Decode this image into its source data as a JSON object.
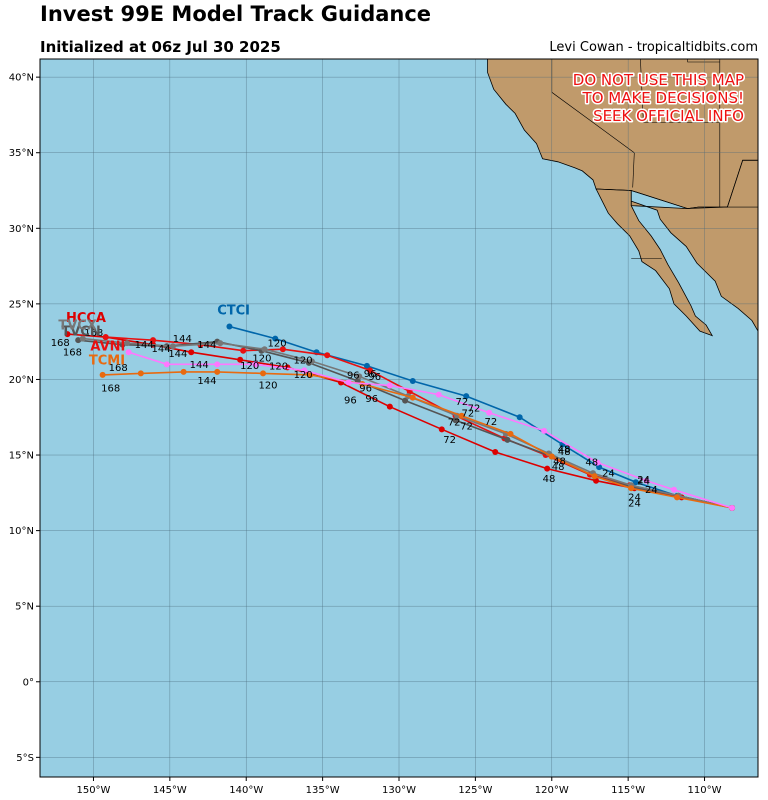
{
  "header": {
    "title": "Invest 99E Model Track Guidance",
    "subtitle": "Initialized at 06z Jul 30 2025",
    "credit": "Levi Cowan - tropicaltidbits.com"
  },
  "warning": {
    "lines": [
      "DO NOT USE THIS MAP",
      "TO MAKE DECISIONS!",
      "SEEK OFFICIAL INFO"
    ],
    "color": "#ee1111"
  },
  "colors": {
    "ocean": "#97cee3",
    "land": "#c09a6b",
    "border": "#000000",
    "grid": "#4a6a7a"
  },
  "chart_data": {
    "type": "line",
    "lon_range": [
      -153.5,
      -106.5
    ],
    "lat_range": [
      -6.3,
      41.2
    ],
    "x_ticks": [
      {
        "v": -150,
        "label": "150°W"
      },
      {
        "v": -145,
        "label": "145°W"
      },
      {
        "v": -140,
        "label": "140°W"
      },
      {
        "v": -135,
        "label": "135°W"
      },
      {
        "v": -130,
        "label": "130°W"
      },
      {
        "v": -125,
        "label": "125°W"
      },
      {
        "v": -120,
        "label": "120°W"
      },
      {
        "v": -115,
        "label": "115°W"
      },
      {
        "v": -110,
        "label": "110°W"
      }
    ],
    "y_ticks": [
      {
        "v": 40,
        "label": "40°N"
      },
      {
        "v": 35,
        "label": "35°N"
      },
      {
        "v": 30,
        "label": "30°N"
      },
      {
        "v": 25,
        "label": "25°N"
      },
      {
        "v": 20,
        "label": "20°N"
      },
      {
        "v": 15,
        "label": "15°N"
      },
      {
        "v": 10,
        "label": "10°N"
      },
      {
        "v": 5,
        "label": "5°N"
      },
      {
        "v": 0,
        "label": "0°"
      },
      {
        "v": -5,
        "label": "5°S"
      }
    ],
    "land_outline": [
      [
        -106.5,
        34.5
      ],
      [
        -107.5,
        34.5
      ],
      [
        -108.5,
        31.4
      ],
      [
        -110.4,
        31.4
      ],
      [
        -111.1,
        31.3
      ],
      [
        -114.8,
        32.5
      ],
      [
        -117.1,
        32.6
      ],
      [
        -117.3,
        33.2
      ],
      [
        -118.0,
        33.8
      ],
      [
        -118.5,
        34.0
      ],
      [
        -119.6,
        34.4
      ],
      [
        -120.6,
        34.6
      ],
      [
        -121.0,
        35.6
      ],
      [
        -121.8,
        36.5
      ],
      [
        -122.4,
        37.6
      ],
      [
        -123.0,
        38.2
      ],
      [
        -123.8,
        39.2
      ],
      [
        -124.2,
        40.3
      ],
      [
        -124.2,
        41.2
      ],
      [
        -106.5,
        41.2
      ]
    ],
    "baja": [
      [
        -117.1,
        32.6
      ],
      [
        -116.7,
        31.8
      ],
      [
        -116.3,
        31.0
      ],
      [
        -115.7,
        30.3
      ],
      [
        -114.9,
        29.5
      ],
      [
        -114.3,
        28.5
      ],
      [
        -114.1,
        27.8
      ],
      [
        -113.2,
        27.2
      ],
      [
        -112.3,
        26.0
      ],
      [
        -112.0,
        25.0
      ],
      [
        -111.2,
        24.2
      ],
      [
        -110.3,
        23.2
      ],
      [
        -109.5,
        22.9
      ],
      [
        -109.9,
        23.6
      ],
      [
        -110.6,
        24.2
      ],
      [
        -110.9,
        24.9
      ],
      [
        -111.7,
        26.4
      ],
      [
        -112.4,
        27.6
      ],
      [
        -112.9,
        28.6
      ],
      [
        -113.5,
        29.5
      ],
      [
        -114.3,
        30.5
      ],
      [
        -114.8,
        31.5
      ],
      [
        -114.8,
        32.5
      ]
    ],
    "mexico_mainland": [
      [
        -106.5,
        23.2
      ],
      [
        -106.9,
        23.9
      ],
      [
        -107.8,
        24.7
      ],
      [
        -108.9,
        25.5
      ],
      [
        -109.3,
        26.5
      ],
      [
        -110.5,
        27.7
      ],
      [
        -111.2,
        28.8
      ],
      [
        -112.2,
        29.7
      ],
      [
        -112.9,
        30.6
      ],
      [
        -113.1,
        31.2
      ],
      [
        -114.8,
        31.8
      ],
      [
        -114.8,
        32.5
      ],
      [
        -114.8,
        31.5
      ],
      [
        -111.1,
        31.3
      ],
      [
        -110.4,
        31.4
      ],
      [
        -108.5,
        31.4
      ],
      [
        -107.5,
        34.5
      ],
      [
        -106.5,
        34.5
      ]
    ],
    "borders": [
      [
        [
          -117.1,
          32.6
        ],
        [
          -114.8,
          32.5
        ],
        [
          -111.1,
          31.3
        ],
        [
          -108.5,
          31.4
        ],
        [
          -106.5,
          31.4
        ]
      ],
      [
        [
          -120.0,
          41.2
        ],
        [
          -120.0,
          39.0
        ],
        [
          -114.6,
          35.0
        ]
      ],
      [
        [
          -114.2,
          41.2
        ],
        [
          -114.0,
          37.0
        ]
      ],
      [
        [
          -114.0,
          37.0
        ],
        [
          -109.0,
          37.0
        ],
        [
          -109.0,
          41.2
        ]
      ],
      [
        [
          -114.6,
          35.0
        ],
        [
          -114.7,
          32.7
        ]
      ],
      [
        [
          -109.0,
          37.0
        ],
        [
          -109.0,
          31.4
        ]
      ],
      [
        [
          -111.1,
          41.2
        ],
        [
          -111.1,
          41.0
        ],
        [
          -109.0,
          41.0
        ]
      ],
      [
        [
          -114.8,
          28.0
        ],
        [
          -112.8,
          28.0
        ]
      ]
    ],
    "series": [
      {
        "name": "CTCI",
        "color": "#0066aa",
        "points": [
          [
            -108.2,
            11.5
          ],
          [
            -111.8,
            12.3
          ],
          [
            -114.5,
            13.2
          ],
          [
            -116.9,
            14.2
          ],
          [
            -119.3,
            15.7
          ],
          [
            -122.1,
            17.5
          ],
          [
            -125.6,
            18.9
          ],
          [
            -129.1,
            19.9
          ],
          [
            -132.1,
            20.9
          ],
          [
            -135.4,
            21.8
          ],
          [
            -138.1,
            22.7
          ],
          [
            -141.1,
            23.5
          ]
        ],
        "labels": [],
        "label_pos": [
          -141.9,
          24.3
        ]
      },
      {
        "name": "HCCA",
        "color": "#dd0000",
        "points": [
          [
            -108.2,
            11.5
          ],
          [
            -111.5,
            12.2
          ],
          [
            -114.6,
            12.8
          ],
          [
            -117.1,
            13.3
          ],
          [
            -120.3,
            14.1
          ],
          [
            -123.7,
            15.2
          ],
          [
            -127.2,
            16.7
          ],
          [
            -130.6,
            18.2
          ],
          [
            -133.8,
            19.8
          ],
          [
            -137.3,
            20.8
          ],
          [
            -140.4,
            21.3
          ],
          [
            -143.6,
            21.8
          ],
          [
            -146.1,
            22.3
          ],
          [
            -149.2,
            22.8
          ],
          [
            -151.7,
            23.0
          ]
        ],
        "labels": [
          {
            "t": "24",
            "at": 3
          },
          {
            "t": "48",
            "at": 4
          },
          {
            "t": "72",
            "at": 6
          },
          {
            "t": "96",
            "at": 8
          },
          {
            "t": "120",
            "at": 9
          },
          {
            "t": "144",
            "at": 11
          }
        ],
        "label_pos": [
          -151.8,
          23.8
        ]
      },
      {
        "name": "AVNI",
        "color": "#e81010",
        "points": [
          [
            -108.2,
            11.5
          ],
          [
            -111.7,
            12.3
          ],
          [
            -114.9,
            13.0
          ],
          [
            -117.5,
            13.7
          ],
          [
            -120.4,
            15.0
          ],
          [
            -123.1,
            16.1
          ],
          [
            -126.3,
            17.6
          ],
          [
            -129.3,
            19.2
          ],
          [
            -131.9,
            20.6
          ],
          [
            -134.7,
            21.6
          ],
          [
            -137.6,
            22.0
          ],
          [
            -140.2,
            21.9
          ],
          [
            -143.0,
            22.3
          ],
          [
            -146.1,
            22.6
          ],
          [
            -149.2,
            22.8
          ]
        ],
        "labels": [],
        "label_pos": [
          -150.2,
          21.9
        ]
      },
      {
        "name": "TVCN",
        "color": "#555555",
        "points": [
          [
            -108.2,
            11.5
          ],
          [
            -111.7,
            12.3
          ],
          [
            -114.8,
            12.9
          ],
          [
            -117.2,
            13.6
          ],
          [
            -120.0,
            14.9
          ],
          [
            -122.9,
            16.0
          ],
          [
            -126.3,
            17.3
          ],
          [
            -129.6,
            18.6
          ],
          [
            -132.7,
            19.9
          ],
          [
            -135.9,
            21.1
          ],
          [
            -139.0,
            21.9
          ],
          [
            -141.9,
            22.5
          ],
          [
            -145.2,
            22.2
          ],
          [
            -148.1,
            22.3
          ],
          [
            -151.0,
            22.6
          ]
        ],
        "labels": [
          {
            "t": "24",
            "at": 2
          },
          {
            "t": "48",
            "at": 4
          },
          {
            "t": "72",
            "at": 6
          },
          {
            "t": "96",
            "at": 8
          },
          {
            "t": "120",
            "at": 10
          },
          {
            "t": "144",
            "at": 12
          },
          {
            "t": "168",
            "at": 14
          }
        ],
        "label_pos": [
          -152.1,
          22.9
        ]
      },
      {
        "name": "TVCX",
        "color": "#777777",
        "points": [
          [
            -108.2,
            11.5
          ],
          [
            -111.7,
            12.3
          ],
          [
            -114.8,
            13.0
          ],
          [
            -117.3,
            13.8
          ],
          [
            -120.2,
            15.1
          ],
          [
            -123.0,
            16.4
          ],
          [
            -126.2,
            17.6
          ],
          [
            -129.4,
            18.9
          ],
          [
            -132.6,
            20.2
          ],
          [
            -135.7,
            21.2
          ],
          [
            -138.8,
            22.0
          ],
          [
            -141.7,
            22.4
          ],
          [
            -144.8,
            22.2
          ],
          [
            -147.8,
            22.4
          ],
          [
            -150.7,
            22.7
          ]
        ],
        "labels": [],
        "label_pos": [
          -152.3,
          23.3
        ]
      },
      {
        "name": "TCMI",
        "color": "#e86a10",
        "points": [
          [
            -108.2,
            11.5
          ],
          [
            -111.8,
            12.2
          ],
          [
            -114.8,
            12.8
          ],
          [
            -117.2,
            13.6
          ],
          [
            -120.0,
            14.9
          ],
          [
            -122.7,
            16.4
          ],
          [
            -125.9,
            17.6
          ],
          [
            -129.1,
            18.8
          ],
          [
            -132.4,
            19.7
          ],
          [
            -135.8,
            20.3
          ],
          [
            -138.9,
            20.4
          ],
          [
            -141.9,
            20.5
          ],
          [
            -144.1,
            20.5
          ],
          [
            -146.9,
            20.4
          ],
          [
            -149.4,
            20.3
          ]
        ],
        "labels": [
          {
            "t": "24",
            "at": 2
          },
          {
            "t": "48",
            "at": 4
          },
          {
            "t": "72",
            "at": 6
          },
          {
            "t": "96",
            "at": 8
          },
          {
            "t": "120",
            "at": 10
          },
          {
            "t": "144",
            "at": 12
          },
          {
            "t": "168",
            "at": 14
          }
        ],
        "label_pos": [
          -150.3,
          21.0
        ]
      },
      {
        "name": "",
        "color": "#ff77ff",
        "points": [
          [
            -108.2,
            11.5
          ],
          [
            -112.0,
            12.7
          ],
          [
            -113.8,
            13.3
          ],
          [
            -117.0,
            14.5
          ],
          [
            -120.5,
            16.6
          ],
          [
            -124.1,
            17.8
          ],
          [
            -127.4,
            19.0
          ],
          [
            -130.6,
            19.6
          ],
          [
            -133.3,
            19.8
          ],
          [
            -136.2,
            20.6
          ],
          [
            -139.4,
            21.0
          ],
          [
            -141.9,
            21.0
          ],
          [
            -145.2,
            21.0
          ],
          [
            -147.7,
            21.8
          ]
        ],
        "labels": [
          {
            "t": "144",
            "at": 13
          }
        ],
        "label_pos": null
      }
    ],
    "extra_labels": [
      {
        "t": "168",
        "lon": -149.5,
        "lat": 19.2
      },
      {
        "t": "168",
        "lon": -152.0,
        "lat": 21.6
      },
      {
        "t": "168",
        "lon": -152.8,
        "lat": 22.2
      },
      {
        "t": "144",
        "lon": -146.2,
        "lat": 21.8
      },
      {
        "t": "144",
        "lon": -143.2,
        "lat": 19.7
      },
      {
        "t": "144",
        "lon": -145.1,
        "lat": 21.5
      },
      {
        "t": "120",
        "lon": -140.4,
        "lat": 20.7
      },
      {
        "t": "120",
        "lon": -139.2,
        "lat": 19.4
      },
      {
        "t": "120",
        "lon": -136.9,
        "lat": 20.1
      },
      {
        "t": "120",
        "lon": -139.6,
        "lat": 21.2
      },
      {
        "t": "96",
        "lon": -133.6,
        "lat": 18.4
      },
      {
        "t": "96",
        "lon": -132.2,
        "lat": 18.5
      },
      {
        "t": "96",
        "lon": -132.6,
        "lat": 19.2
      },
      {
        "t": "72",
        "lon": -126.3,
        "lat": 18.3
      },
      {
        "t": "72",
        "lon": -124.4,
        "lat": 17.0
      },
      {
        "t": "72",
        "lon": -127.1,
        "lat": 15.8
      },
      {
        "t": "72",
        "lon": -126.0,
        "lat": 16.7
      },
      {
        "t": "48",
        "lon": -119.6,
        "lat": 15.0
      },
      {
        "t": "48",
        "lon": -117.8,
        "lat": 14.3
      },
      {
        "t": "48",
        "lon": -120.6,
        "lat": 13.2
      },
      {
        "t": "48",
        "lon": -120.0,
        "lat": 14.0
      },
      {
        "t": "24",
        "lon": -113.9,
        "lat": 12.5
      },
      {
        "t": "24",
        "lon": -115.0,
        "lat": 12.0
      },
      {
        "t": "24",
        "lon": -115.0,
        "lat": 11.6
      }
    ]
  }
}
